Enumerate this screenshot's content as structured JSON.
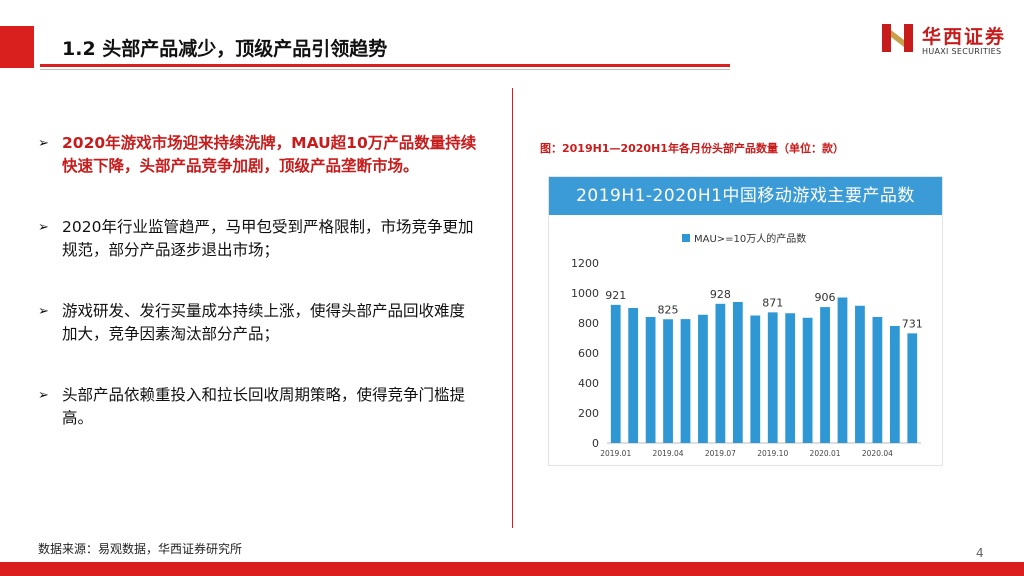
{
  "header": {
    "title": "1.2 头部产品减少，顶级产品引领趋势"
  },
  "logo": {
    "name_cn": "华西证券",
    "name_en": "HUAXI SECURITIES"
  },
  "bullets": [
    {
      "text": "2020年游戏市场迎来持续洗牌，MAU超10万产品数量持续快速下降，头部产品竞争加剧，顶级产品垄断市场。",
      "highlight": true
    },
    {
      "text": "2020年行业监管趋严，马甲包受到严格限制，市场竞争更加规范，部分产品逐步退出市场；",
      "highlight": false
    },
    {
      "text": "游戏研发、发行买量成本持续上涨，使得头部产品回收难度加大，竞争因素淘汰部分产品；",
      "highlight": false
    },
    {
      "text": "头部产品依赖重投入和拉长回收周期策略，使得竞争门槛提高。",
      "highlight": false
    }
  ],
  "chart_caption": "图：2019H1—2020H1年各月份头部产品数量（单位：款）",
  "chart_data": {
    "type": "bar",
    "title": "2019H1-2020H1中国移动游戏主要产品数",
    "legend": "MAU>=10万人的产品数",
    "categories": [
      "2019.01",
      "2019.02",
      "2019.03",
      "2019.04",
      "2019.05",
      "2019.06",
      "2019.07",
      "2019.08",
      "2019.09",
      "2019.10",
      "2019.11",
      "2019.12",
      "2020.01",
      "2020.02",
      "2020.03",
      "2020.04",
      "2020.05",
      "2020.06"
    ],
    "x_tick_labels": [
      "2019.01",
      "2019.04",
      "2019.07",
      "2019.10",
      "2020.01",
      "2020.04"
    ],
    "values": [
      921,
      900,
      840,
      825,
      826,
      855,
      928,
      940,
      850,
      871,
      865,
      835,
      906,
      970,
      915,
      840,
      780,
      731
    ],
    "labeled_points": {
      "2019.01": "921",
      "2019.04": "825",
      "2019.07": "928",
      "2019.10": "871",
      "2020.01": "906",
      "2020.06": "731"
    },
    "ylim": [
      0,
      1200
    ],
    "yticks": [
      0,
      200,
      400,
      600,
      800,
      1000,
      1200
    ],
    "bar_color": "#2e97d4"
  },
  "footer": {
    "source": "数据来源：易观数据，华西证券研究所",
    "page": "4"
  },
  "colors": {
    "brand_red": "#d9201f",
    "banner_blue": "#3b9bd6"
  }
}
